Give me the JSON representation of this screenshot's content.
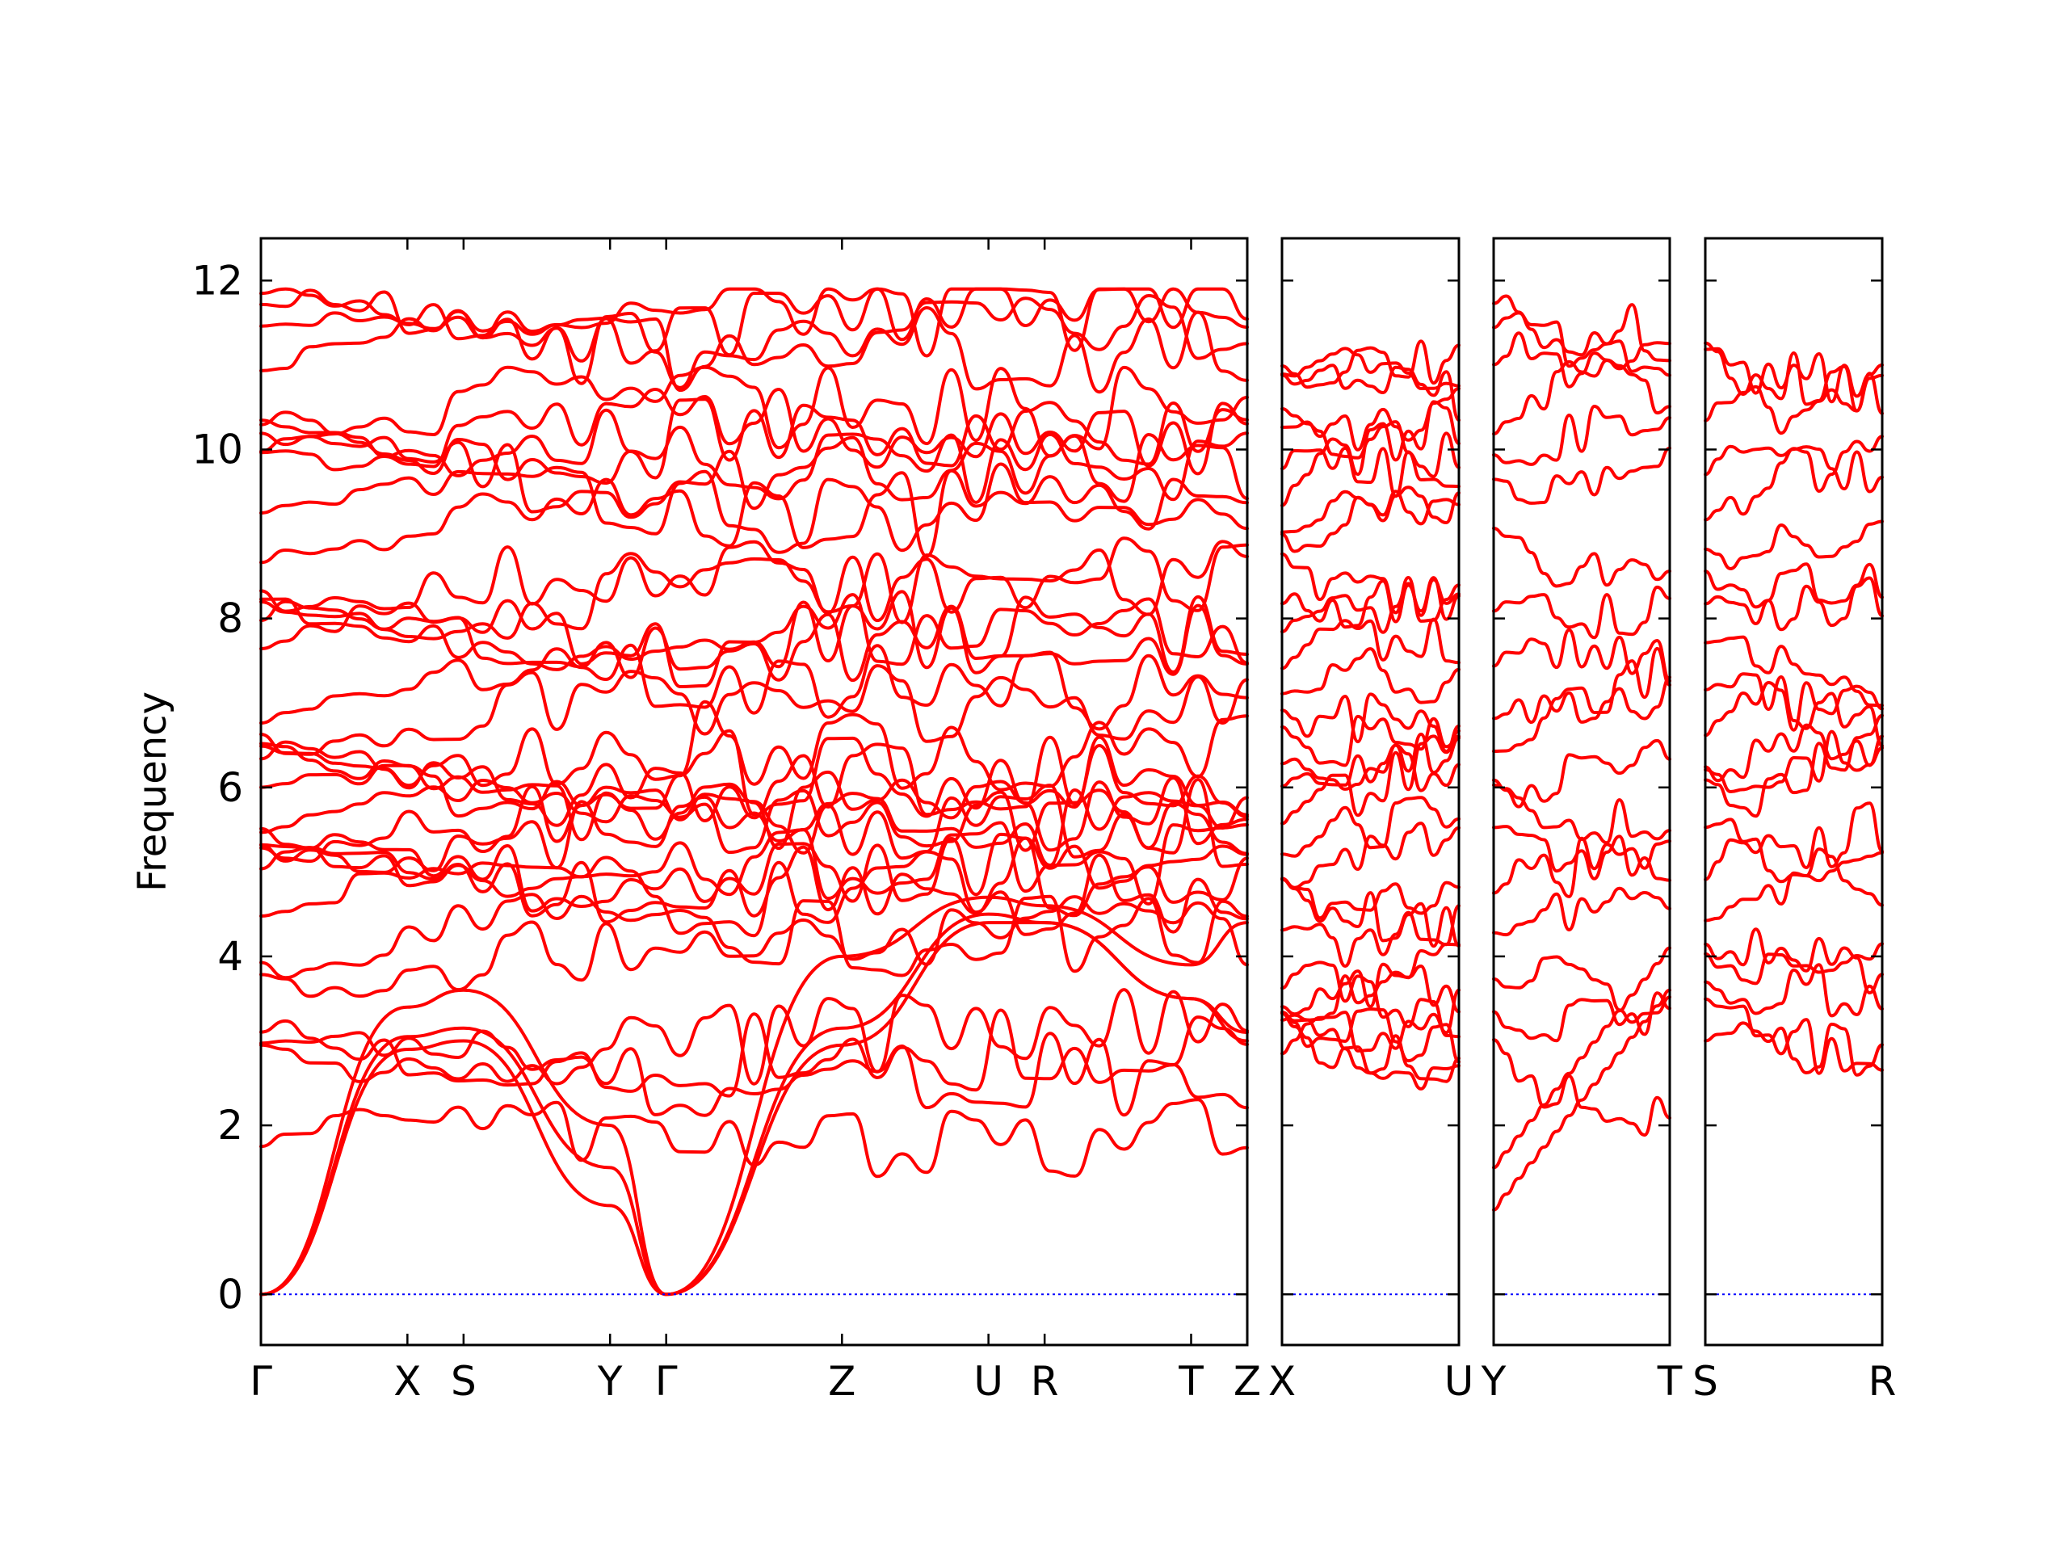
{
  "chart_data": {
    "type": "line",
    "title": "",
    "ylabel": "Frequency",
    "xlabel": "",
    "ylim": [
      -0.6,
      12.5
    ],
    "yticks": [
      0,
      2,
      4,
      6,
      8,
      10,
      12
    ],
    "zero_line_color": "#0000ff",
    "band_color": "#ff0000",
    "grid": false,
    "segments": [
      {
        "labels": [
          "Γ",
          "X",
          "S",
          "Y",
          "Γ",
          "Z",
          "U",
          "R",
          "T",
          "Z"
        ],
        "positions": [
          0,
          0.6,
          0.83,
          1.43,
          1.66,
          2.38,
          2.98,
          3.21,
          3.81,
          4.04
        ]
      },
      {
        "labels": [
          "X",
          "U"
        ],
        "positions": [
          0,
          1
        ]
      },
      {
        "labels": [
          "Y",
          "T"
        ],
        "positions": [
          0,
          1
        ]
      },
      {
        "labels": [
          "S",
          "R"
        ],
        "positions": [
          0,
          1
        ]
      }
    ],
    "acoustic_branches": [
      {
        "name": "",
        "x": [
          0,
          0.6,
          0.83,
          1.43,
          1.66,
          2.38,
          2.98,
          3.21,
          3.81,
          4.04
        ],
        "y": [
          0,
          2.9,
          3.0,
          1.05,
          0,
          2.95,
          4.4,
          4.4,
          3.5,
          3.0
        ]
      },
      {
        "name": "",
        "x": [
          0,
          0.6,
          0.83,
          1.43,
          1.66,
          2.38,
          2.98,
          3.21,
          3.81,
          4.04
        ],
        "y": [
          0,
          3.05,
          3.15,
          1.5,
          0,
          3.15,
          4.5,
          4.4,
          3.5,
          3.1
        ]
      },
      {
        "name": "",
        "x": [
          0,
          0.6,
          0.83,
          1.43,
          1.66,
          2.38,
          2.98,
          3.21,
          3.81,
          4.04
        ],
        "y": [
          0,
          3.4,
          3.6,
          2.0,
          0,
          4.0,
          4.7,
          4.6,
          3.9,
          4.4
        ]
      }
    ],
    "optical_branch_ranges": {
      "main_gamma_start": [
        1.75,
        2.6,
        2.8,
        2.9,
        4.0,
        4.2,
        4.6,
        4.8,
        5.0,
        5.2,
        5.5,
        5.6,
        5.7,
        5.8,
        6.0,
        6.2,
        6.6,
        6.9,
        7.1,
        7.6,
        7.7,
        7.8,
        8.2,
        8.6,
        9.1,
        9.3,
        9.7,
        10.0,
        10.2,
        10.3,
        10.5,
        11.1,
        11.2,
        11.4,
        11.7
      ],
      "xu_start": [
        2.85,
        3.0,
        3.1,
        3.3,
        3.5,
        3.6,
        3.7,
        4.1,
        4.6,
        4.8,
        5.1,
        5.4,
        5.7,
        5.9,
        6.1,
        6.5,
        7.0,
        7.3,
        7.6,
        7.8,
        8.0,
        8.6,
        9.0,
        9.3,
        9.6,
        9.8,
        10.0,
        10.2,
        10.9,
        11.0,
        11.1
      ],
      "yt_start": [
        1.0,
        1.5,
        2.7,
        3.3,
        3.9,
        4.5,
        4.8,
        5.3,
        5.8,
        6.0,
        6.6,
        7.0,
        7.6,
        8.0,
        8.8,
        9.5,
        10.0,
        10.5,
        11.2,
        11.4,
        11.5
      ],
      "sr_start": [
        3.0,
        3.2,
        3.5,
        4.0,
        4.3,
        4.6,
        5.0,
        5.4,
        5.8,
        6.1,
        6.4,
        6.9,
        7.3,
        7.6,
        8.0,
        8.4,
        8.9,
        9.4,
        9.9,
        10.3,
        10.9,
        11.0
      ]
    }
  }
}
